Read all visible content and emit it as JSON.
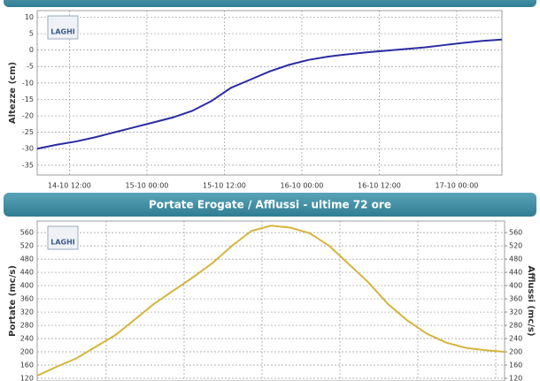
{
  "logo": "LAGHI",
  "chart_data": [
    {
      "type": "line",
      "ylabel": "Altezze (cm)",
      "x": [
        "14-10 07:00",
        "14-10 10:00",
        "14-10 13:00",
        "14-10 16:00",
        "14-10 19:00",
        "14-10 22:00",
        "15-10 01:00",
        "15-10 04:00",
        "15-10 07:00",
        "15-10 10:00",
        "15-10 13:00",
        "15-10 16:00",
        "15-10 19:00",
        "15-10 22:00",
        "16-10 01:00",
        "16-10 04:00",
        "16-10 07:00",
        "16-10 10:00",
        "16-10 13:00",
        "16-10 16:00",
        "16-10 19:00",
        "16-10 22:00",
        "17-10 01:00",
        "17-10 04:00",
        "17-10 07:00"
      ],
      "series": [
        {
          "color": "#2b2ba3",
          "values": [
            -30,
            -28.8,
            -27.8,
            -26.5,
            -25,
            -23.5,
            -22,
            -20.5,
            -18.5,
            -15.5,
            -11.5,
            -9,
            -6.5,
            -4.5,
            -3,
            -2,
            -1.3,
            -0.7,
            -0.2,
            0.3,
            0.8,
            1.5,
            2.2,
            2.8,
            3.2
          ]
        }
      ],
      "xlim": [
        "14-10 07:00",
        "17-10 07:00"
      ],
      "xticks": [
        "14-10 12:00",
        "15-10 00:00",
        "15-10 12:00",
        "16-10 00:00",
        "16-10 12:00",
        "17-10 00:00"
      ],
      "ylim": [
        -38,
        12
      ],
      "yticks": [
        10,
        5,
        0,
        -5,
        -10,
        -15,
        -20,
        -25,
        -30,
        -35
      ],
      "grid": true
    },
    {
      "type": "line",
      "title": "Portate Erogate / Afflussi - ultime 72 ore",
      "ylabel": "Portate (mc/s)",
      "y2label": "Afflussi (mc/s)",
      "x": [
        "14-10 07:00",
        "14-10 10:00",
        "14-10 13:00",
        "14-10 16:00",
        "14-10 19:00",
        "14-10 22:00",
        "15-10 01:00",
        "15-10 04:00",
        "15-10 07:00",
        "15-10 10:00",
        "15-10 13:00",
        "15-10 16:00",
        "15-10 19:00",
        "15-10 22:00",
        "16-10 01:00",
        "16-10 04:00",
        "16-10 07:00",
        "16-10 10:00",
        "16-10 13:00",
        "16-10 16:00",
        "16-10 19:00",
        "16-10 22:00",
        "17-10 01:00",
        "17-10 04:00",
        "17-10 07:00"
      ],
      "series": [
        {
          "color": "#d6b43c",
          "values": [
            128,
            155,
            180,
            215,
            250,
            297,
            345,
            385,
            425,
            468,
            520,
            565,
            581,
            575,
            558,
            520,
            465,
            410,
            345,
            295,
            255,
            228,
            212,
            205,
            200
          ]
        }
      ],
      "xlim": [
        "14-10 07:00",
        "17-10 07:00"
      ],
      "ylim": [
        112,
        595
      ],
      "yticks": [
        560,
        520,
        480,
        440,
        400,
        360,
        320,
        280,
        240,
        200,
        160,
        120
      ],
      "y2lim": [
        112,
        595
      ],
      "y2ticks": [
        560,
        520,
        480,
        440,
        400,
        360,
        320,
        280,
        240,
        200,
        160,
        120
      ],
      "grid": true
    }
  ]
}
